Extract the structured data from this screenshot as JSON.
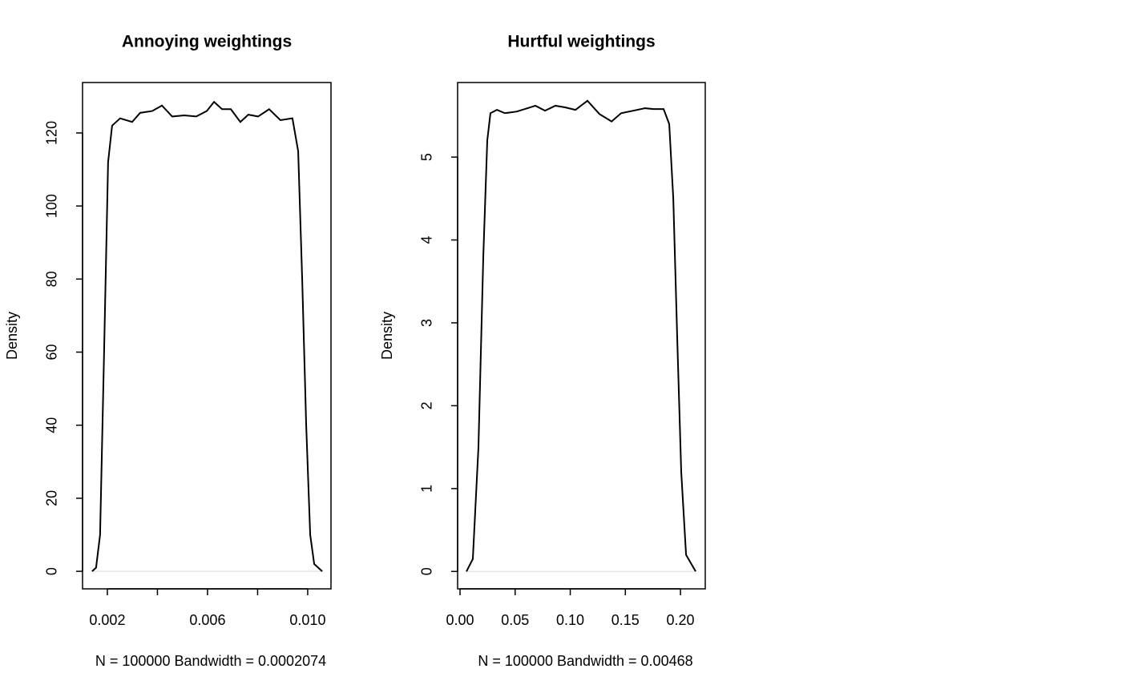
{
  "chart_data": [
    {
      "type": "line",
      "title": "Annoying weightings",
      "xlabel": "N = 100000   Bandwidth = 0.0002074",
      "ylabel": "Density",
      "color": "#000000",
      "x": [
        0.00139,
        0.00155,
        0.00171,
        0.00187,
        0.00203,
        0.00219,
        0.00251,
        0.00299,
        0.00331,
        0.00379,
        0.00418,
        0.00459,
        0.00507,
        0.00555,
        0.00597,
        0.00626,
        0.00658,
        0.00693,
        0.00731,
        0.00763,
        0.00802,
        0.00846,
        0.00891,
        0.00939,
        0.00962,
        0.00978,
        0.00994,
        0.0101,
        0.01026,
        0.01058
      ],
      "values": [
        0,
        1,
        10,
        60,
        112,
        122,
        124,
        123,
        125.5,
        126,
        127.5,
        124.5,
        124.8,
        124.5,
        126,
        128.5,
        126.5,
        126.5,
        123,
        125,
        124.5,
        126.5,
        123.5,
        124,
        115,
        80,
        40,
        10,
        2,
        0
      ],
      "xlim": [
        0.00101,
        0.01093
      ],
      "ylim": [
        -4.8,
        133.8
      ],
      "xticks": [
        0.002,
        {
          "value": 0.004,
          "label": null
        },
        0.006,
        {
          "value": 0.008,
          "label": null
        },
        {
          "value": 0.01,
          "label": "0.010"
        }
      ],
      "yticks": [
        0,
        20,
        40,
        60,
        80,
        100,
        120
      ]
    },
    {
      "type": "line",
      "title": "Hurtful weightings",
      "xlabel": "N = 100000   Bandwidth = 0.00468",
      "ylabel": "Density",
      "color": "#000000",
      "x": [
        0.0058,
        0.0116,
        0.0167,
        0.0211,
        0.0247,
        0.0276,
        0.0335,
        0.0407,
        0.0516,
        0.0589,
        0.0684,
        0.0771,
        0.0865,
        0.0953,
        0.1047,
        0.1156,
        0.1265,
        0.1375,
        0.1462,
        0.1571,
        0.168,
        0.1753,
        0.1847,
        0.1898,
        0.1935,
        0.1971,
        0.2007,
        0.2051,
        0.2138
      ],
      "values": [
        0,
        0.15,
        1.5,
        3.8,
        5.2,
        5.53,
        5.57,
        5.53,
        5.55,
        5.58,
        5.62,
        5.56,
        5.62,
        5.6,
        5.57,
        5.68,
        5.52,
        5.43,
        5.53,
        5.56,
        5.59,
        5.58,
        5.58,
        5.4,
        4.5,
        2.8,
        1.2,
        0.2,
        0
      ],
      "xlim": [
        -0.0022,
        0.2225
      ],
      "ylim": [
        -0.21,
        5.9
      ],
      "xticks": [
        {
          "value": 0,
          "label": "0.00"
        },
        0.05,
        {
          "value": 0.1,
          "label": "0.10"
        },
        0.15,
        {
          "value": 0.2,
          "label": "0.20"
        }
      ],
      "yticks": [
        0,
        1,
        2,
        3,
        4,
        5
      ]
    }
  ]
}
